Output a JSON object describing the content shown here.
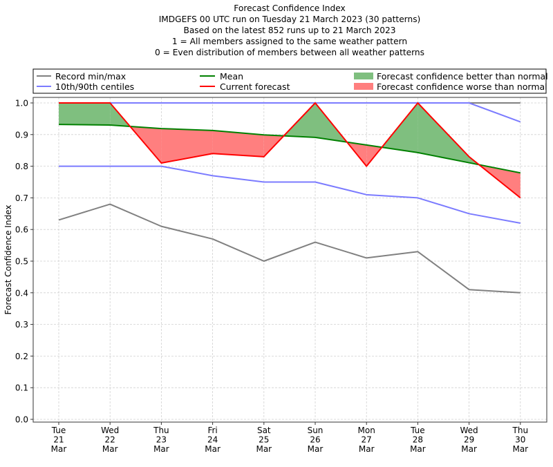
{
  "chart_data": {
    "type": "line",
    "title_lines": [
      "Forecast Confidence Index",
      "IMDGEFS 00 UTC run on Tuesday 21 March 2023 (30 patterns)",
      "Based on the latest 852 runs up to 21 March 2023",
      "1 = All members assigned to the same weather pattern",
      "0 = Even distribution of members between all weather patterns"
    ],
    "xlabel": "",
    "ylabel": "Forecast Confidence Index",
    "ylim": [
      0.0,
      1.0
    ],
    "yticks": [
      "0.0",
      "0.1",
      "0.2",
      "0.3",
      "0.4",
      "0.5",
      "0.6",
      "0.7",
      "0.8",
      "0.9",
      "1.0"
    ],
    "grid": true,
    "legend_position": "top (above plot)",
    "categories": [
      [
        "Tue",
        "21",
        "Mar"
      ],
      [
        "Wed",
        "22",
        "Mar"
      ],
      [
        "Thu",
        "23",
        "Mar"
      ],
      [
        "Fri",
        "24",
        "Mar"
      ],
      [
        "Sat",
        "25",
        "Mar"
      ],
      [
        "Sun",
        "26",
        "Mar"
      ],
      [
        "Mon",
        "27",
        "Mar"
      ],
      [
        "Tue",
        "28",
        "Mar"
      ],
      [
        "Wed",
        "29",
        "Mar"
      ],
      [
        "Thu",
        "30",
        "Mar"
      ]
    ],
    "series": [
      {
        "name": "Record max",
        "legend": "Record min/max",
        "color": "#808080",
        "values": [
          1.0,
          1.0,
          1.0,
          1.0,
          1.0,
          1.0,
          1.0,
          1.0,
          1.0,
          1.0
        ]
      },
      {
        "name": "Record min",
        "legend": "Record min/max",
        "color": "#808080",
        "values": [
          0.63,
          0.68,
          0.61,
          0.57,
          0.5,
          0.56,
          0.51,
          0.53,
          0.41,
          0.4
        ]
      },
      {
        "name": "90th centile",
        "legend": "10th/90th centiles",
        "color": "#7b7bff",
        "values": [
          1.0,
          1.0,
          1.0,
          1.0,
          1.0,
          1.0,
          1.0,
          1.0,
          1.0,
          0.94
        ]
      },
      {
        "name": "10th centile",
        "legend": "10th/90th centiles",
        "color": "#7b7bff",
        "values": [
          0.8,
          0.8,
          0.8,
          0.77,
          0.75,
          0.75,
          0.71,
          0.7,
          0.65,
          0.62
        ]
      },
      {
        "name": "Mean",
        "legend": "Mean",
        "color": "#008000",
        "values": [
          0.932,
          0.93,
          0.919,
          0.913,
          0.899,
          0.891,
          0.867,
          0.843,
          0.811,
          0.779
        ]
      },
      {
        "name": "Current forecast",
        "legend": "Current forecast",
        "color": "#ff0000",
        "values": [
          1.0,
          1.0,
          0.81,
          0.84,
          0.83,
          1.0,
          0.8,
          1.0,
          0.83,
          0.7
        ]
      }
    ],
    "fills": [
      {
        "name": "Forecast confidence better than normal",
        "color": "#7fbf7f"
      },
      {
        "name": "Forecast confidence worse than normal",
        "color": "#ff7f7f"
      }
    ],
    "legend": [
      {
        "label": "Record min/max",
        "kind": "line",
        "color": "#808080"
      },
      {
        "label": "10th/90th centiles",
        "kind": "line",
        "color": "#7b7bff"
      },
      {
        "label": "Mean",
        "kind": "line",
        "color": "#008000"
      },
      {
        "label": "Current forecast",
        "kind": "line",
        "color": "#ff0000"
      },
      {
        "label": "Forecast confidence better than normal",
        "kind": "patch",
        "color": "#7fbf7f"
      },
      {
        "label": "Forecast confidence worse than normal",
        "kind": "patch",
        "color": "#ff7f7f"
      }
    ]
  }
}
